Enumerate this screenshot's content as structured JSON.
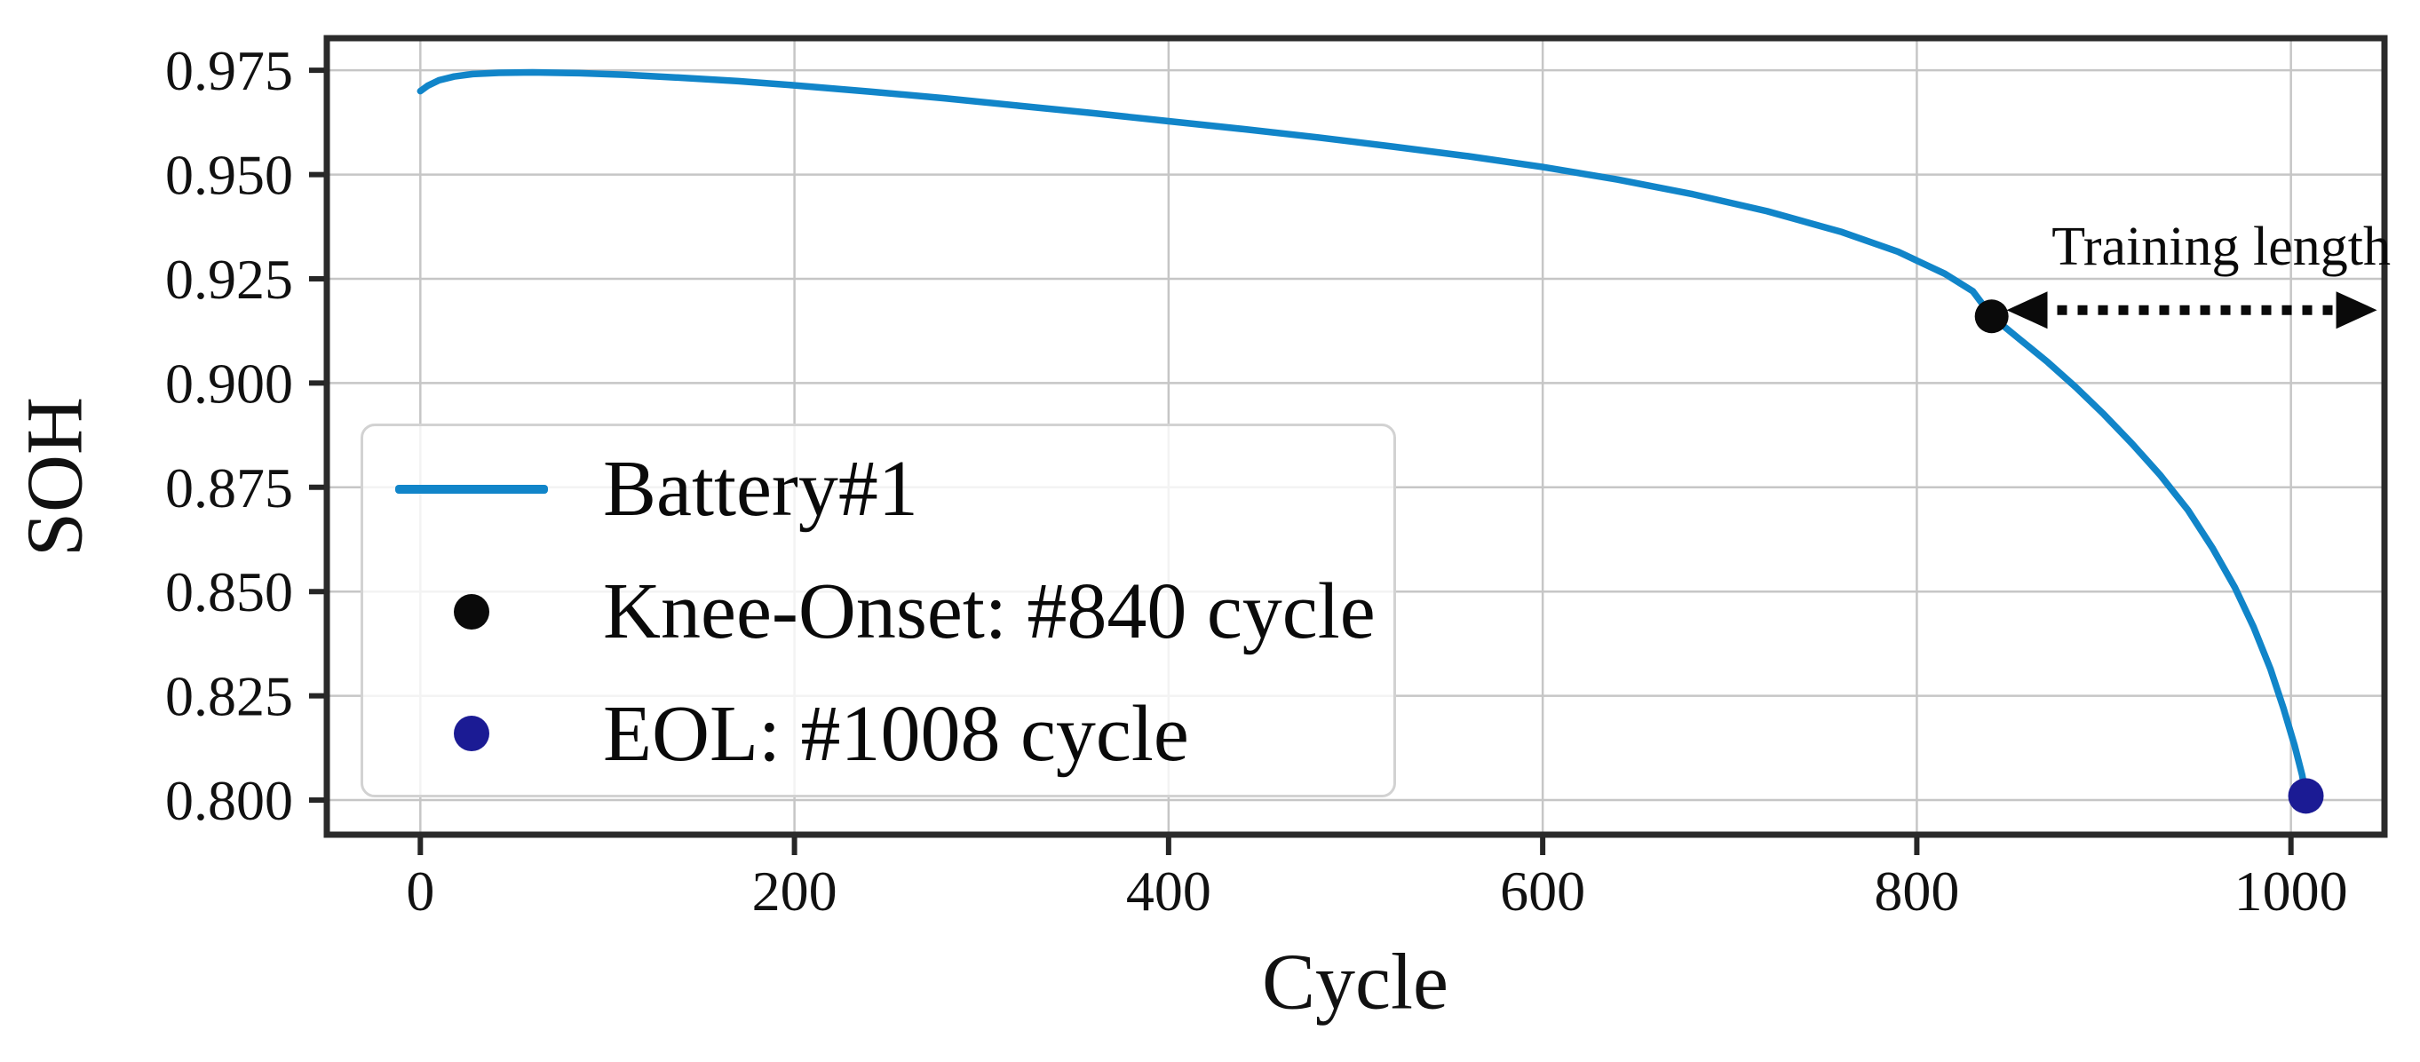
{
  "figure": {
    "ylabel": "SOH",
    "xlabel": "Cycle",
    "annotation": "Training length"
  },
  "legend": {
    "items": [
      {
        "type": "line",
        "color": "#1185c9",
        "label": "Battery#1"
      },
      {
        "type": "dot",
        "color": "#0a0a0a",
        "label": "Knee-Onset: #840 cycle"
      },
      {
        "type": "dot",
        "color": "#1b1b94",
        "label": "EOL: #1008 cycle"
      }
    ]
  },
  "chart_data": {
    "type": "line",
    "title": "",
    "xlabel": "Cycle",
    "ylabel": "SOH",
    "xlim": [
      -50,
      1050
    ],
    "ylim": [
      0.7917,
      0.9827
    ],
    "grid": true,
    "legend_position": "lower left",
    "x_tick_values": [
      0,
      200,
      400,
      600,
      800,
      1000
    ],
    "x_tick_labels": [
      "0",
      "200",
      "400",
      "600",
      "800",
      "1000"
    ],
    "y_tick_values": [
      0.975,
      0.95,
      0.925,
      0.9,
      0.875,
      0.85,
      0.825,
      0.8
    ],
    "y_tick_labels": [
      "0.975",
      "0.950",
      "0.925",
      "0.900",
      "0.875",
      "0.850",
      "0.825",
      "0.800"
    ],
    "series": [
      {
        "name": "Battery#1",
        "color": "#1185c9",
        "points": [
          [
            0,
            0.97
          ],
          [
            4,
            0.9713
          ],
          [
            10,
            0.9726
          ],
          [
            18,
            0.9735
          ],
          [
            28,
            0.9741
          ],
          [
            42,
            0.9744
          ],
          [
            60,
            0.9745
          ],
          [
            85,
            0.9743
          ],
          [
            110,
            0.9739
          ],
          [
            140,
            0.9732
          ],
          [
            170,
            0.9724
          ],
          [
            200,
            0.9714
          ],
          [
            240,
            0.9699
          ],
          [
            280,
            0.9683
          ],
          [
            320,
            0.9665
          ],
          [
            360,
            0.9647
          ],
          [
            400,
            0.9628
          ],
          [
            440,
            0.9609
          ],
          [
            480,
            0.9589
          ],
          [
            520,
            0.9567
          ],
          [
            560,
            0.9544
          ],
          [
            600,
            0.9518
          ],
          [
            640,
            0.9488
          ],
          [
            680,
            0.9453
          ],
          [
            720,
            0.9412
          ],
          [
            760,
            0.9362
          ],
          [
            790,
            0.9315
          ],
          [
            815,
            0.9262
          ],
          [
            830,
            0.922
          ],
          [
            840,
            0.916
          ],
          [
            855,
            0.9105
          ],
          [
            870,
            0.905
          ],
          [
            885,
            0.899
          ],
          [
            900,
            0.8925
          ],
          [
            915,
            0.8855
          ],
          [
            930,
            0.878
          ],
          [
            945,
            0.8695
          ],
          [
            958,
            0.8605
          ],
          [
            970,
            0.851
          ],
          [
            980,
            0.8415
          ],
          [
            989,
            0.8315
          ],
          [
            996,
            0.822
          ],
          [
            1002,
            0.813
          ],
          [
            1006,
            0.806
          ],
          [
            1008,
            0.801
          ]
        ]
      }
    ],
    "markers": [
      {
        "name": "knee-onset",
        "label": "Knee-Onset: #840 cycle",
        "cycle": 840,
        "soh": 0.916,
        "color": "#0a0a0a",
        "radius": 19
      },
      {
        "name": "eol",
        "label": "EOL: #1008 cycle",
        "cycle": 1008,
        "soh": 0.801,
        "color": "#1b1b94",
        "radius": 20
      }
    ],
    "annotation": {
      "text": "Training length",
      "arrow": {
        "x1_cycle": 848,
        "x2_cycle": 1046,
        "soh": 0.9175,
        "style": "dotted-double-arrow"
      }
    }
  }
}
